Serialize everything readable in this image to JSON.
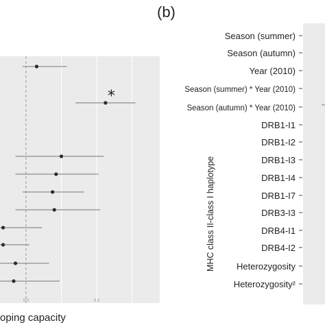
{
  "panels": {
    "right_label": "(b)"
  },
  "chart_data": [
    {
      "type": "scatter",
      "title": "",
      "xlabel": "oping capacity",
      "ylabel": "",
      "xticks": [
        "0.0",
        "0.2"
      ],
      "xlim": [
        -0.065,
        0.33
      ],
      "reference_line_x": 0,
      "points": [
        {
          "estimate": 0.03,
          "lo": -0.01,
          "hi": 0.115,
          "significant": false
        },
        {
          "estimate": 0.225,
          "lo": 0.14,
          "hi": 0.31,
          "significant": true,
          "annotation": "*"
        },
        {
          "estimate": 0.1,
          "lo": -0.03,
          "hi": 0.22,
          "significant": false
        },
        {
          "estimate": 0.085,
          "lo": -0.03,
          "hi": 0.205,
          "significant": false
        },
        {
          "estimate": 0.075,
          "lo": -0.01,
          "hi": 0.165,
          "significant": false
        },
        {
          "estimate": 0.08,
          "lo": -0.03,
          "hi": 0.21,
          "significant": false
        },
        {
          "estimate": -0.065,
          "lo": -0.1,
          "hi": 0.045,
          "significant": false
        },
        {
          "estimate": -0.065,
          "lo": -0.1,
          "hi": 0.01,
          "significant": false
        },
        {
          "estimate": -0.03,
          "lo": -0.1,
          "hi": 0.065,
          "significant": false
        },
        {
          "estimate": -0.035,
          "lo": -0.12,
          "hi": 0.095,
          "significant": false
        }
      ]
    },
    {
      "type": "scatter",
      "title": "",
      "ylabel": "MHC class II-class I haplotype",
      "categories": [
        "Season (summer)",
        "Season (autumn)",
        "Year (2010)",
        "Season (summer) * Year (2010)",
        "Season (autumn) * Year (2010)",
        "DRB1-I1",
        "DRB1-I2",
        "DRB1-I3",
        "DRB1-I4",
        "DRB1-I7",
        "DRB3-I3",
        "DRB4-I1",
        "DRB4-I2",
        "Heterozygosity",
        "Heterozygosity²"
      ]
    }
  ]
}
